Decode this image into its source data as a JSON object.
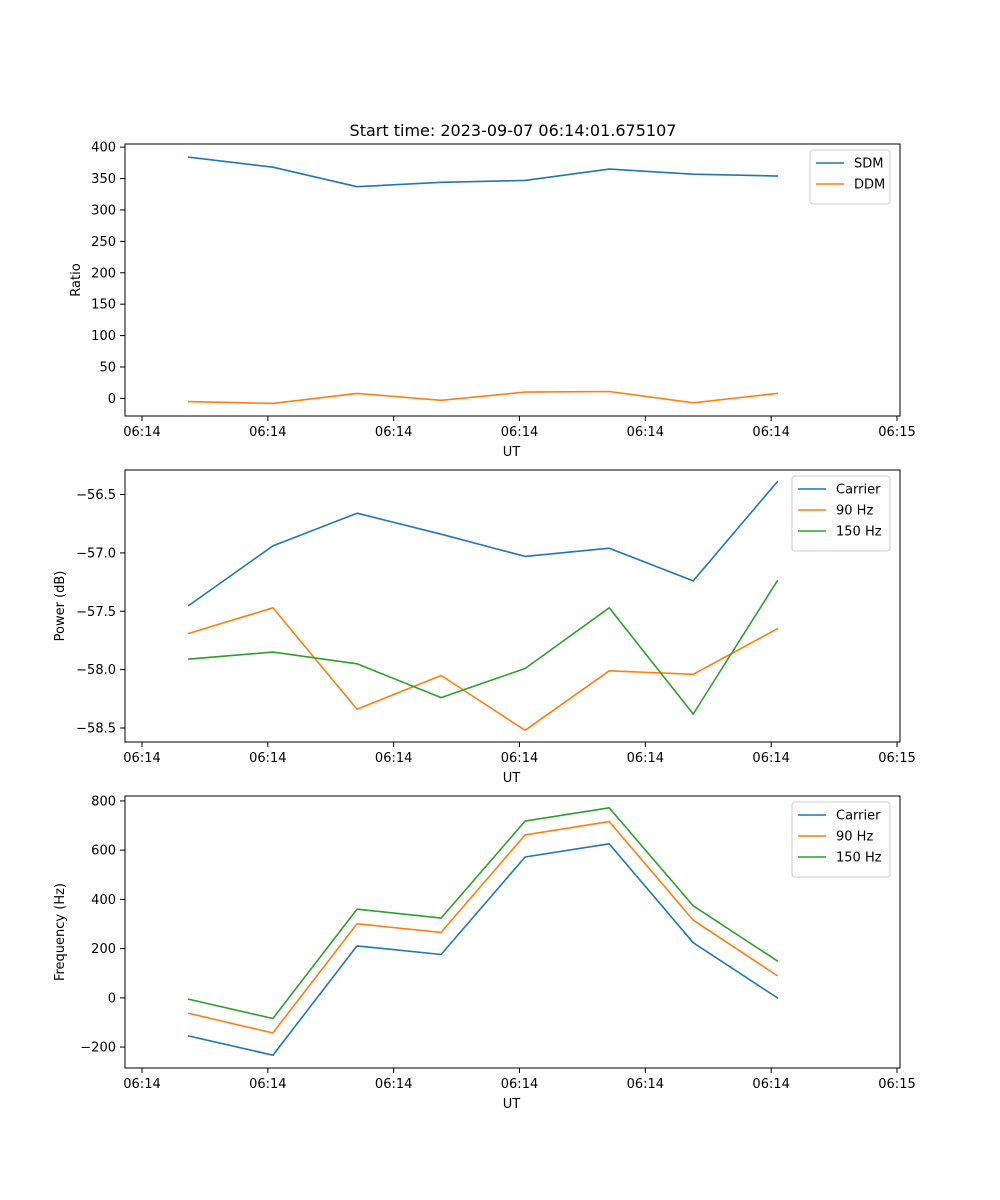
{
  "figure_title": "Start time: 2023-09-07 06:14:01.675107",
  "colors": {
    "blue": "#1f77b4",
    "orange": "#ff7f0e",
    "green": "#2ca02c"
  },
  "chart_data": [
    {
      "type": "line",
      "title": "Start time: 2023-09-07 06:14:01.675107",
      "xlabel": "UT",
      "ylabel": "Ratio",
      "x_tick_labels": [
        "06:14",
        "06:14",
        "06:14",
        "06:14",
        "06:14",
        "06:14",
        "06:15"
      ],
      "y_ticks": [
        0,
        50,
        100,
        150,
        200,
        250,
        300,
        350,
        400
      ],
      "y_tick_labels": [
        "0",
        "50",
        "100",
        "150",
        "200",
        "250",
        "300",
        "350",
        "400"
      ],
      "ylim": [
        -28,
        405
      ],
      "x": [
        0,
        1,
        2,
        3,
        4,
        5,
        6,
        7
      ],
      "series": [
        {
          "name": "SDM",
          "color": "#1f77b4",
          "values": [
            384,
            368,
            337,
            344,
            347,
            365,
            357,
            354
          ]
        },
        {
          "name": "DDM",
          "color": "#ff7f0e",
          "values": [
            -5,
            -8,
            8,
            -3,
            10,
            11,
            -7,
            8
          ]
        }
      ],
      "legend_position": "top-right"
    },
    {
      "type": "line",
      "xlabel": "UT",
      "ylabel": "Power (dB)",
      "x_tick_labels": [
        "06:14",
        "06:14",
        "06:14",
        "06:14",
        "06:14",
        "06:14",
        "06:15"
      ],
      "y_ticks": [
        -58.5,
        -58.0,
        -57.5,
        -57.0,
        -56.5
      ],
      "y_tick_labels": [
        "−58.5",
        "−58.0",
        "−57.5",
        "−57.0",
        "−56.5"
      ],
      "ylim": [
        -58.62,
        -56.29
      ],
      "x": [
        0,
        1,
        2,
        3,
        4,
        5,
        6,
        7
      ],
      "series": [
        {
          "name": "Carrier",
          "color": "#1f77b4",
          "values": [
            -57.45,
            -56.94,
            -56.66,
            -56.84,
            -57.03,
            -56.96,
            -57.24,
            -56.39
          ]
        },
        {
          "name": "90 Hz",
          "color": "#ff7f0e",
          "values": [
            -57.69,
            -57.47,
            -58.34,
            -58.05,
            -58.52,
            -58.01,
            -58.04,
            -57.65
          ]
        },
        {
          "name": "150 Hz",
          "color": "#2ca02c",
          "values": [
            -57.91,
            -57.85,
            -57.95,
            -58.24,
            -57.99,
            -57.47,
            -58.38,
            -57.24
          ]
        }
      ],
      "legend_position": "top-right"
    },
    {
      "type": "line",
      "xlabel": "UT",
      "ylabel": "Frequency (Hz)",
      "x_tick_labels": [
        "06:14",
        "06:14",
        "06:14",
        "06:14",
        "06:14",
        "06:14",
        "06:15"
      ],
      "y_ticks": [
        -200,
        0,
        200,
        400,
        600,
        800
      ],
      "y_tick_labels": [
        "−200",
        "0",
        "200",
        "400",
        "600",
        "800"
      ],
      "ylim": [
        -285,
        820
      ],
      "x": [
        0,
        1,
        2,
        3,
        4,
        5,
        6,
        7
      ],
      "series": [
        {
          "name": "Carrier",
          "color": "#1f77b4",
          "values": [
            -155,
            -233,
            211,
            176,
            572,
            626,
            224,
            0
          ]
        },
        {
          "name": "90 Hz",
          "color": "#ff7f0e",
          "values": [
            -63,
            -143,
            301,
            266,
            662,
            716,
            316,
            90
          ]
        },
        {
          "name": "150 Hz",
          "color": "#2ca02c",
          "values": [
            -6,
            -84,
            360,
            324,
            718,
            772,
            374,
            150
          ]
        }
      ],
      "legend_position": "top-right"
    }
  ]
}
